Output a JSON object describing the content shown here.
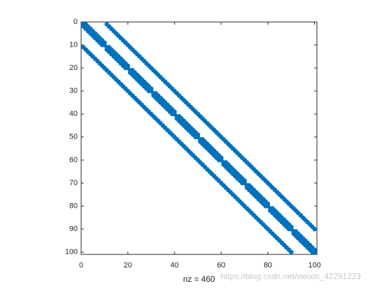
{
  "chart_data": {
    "type": "spy",
    "xlabel": "nz = 460",
    "watermark": "https://blog.csdn.net/weixin_42291223",
    "color": "#0072bd",
    "xlim": [
      0,
      101
    ],
    "ylim": [
      0,
      101
    ],
    "y_reversed": true,
    "xticks": [
      0,
      20,
      40,
      60,
      80,
      100
    ],
    "yticks": [
      0,
      10,
      20,
      30,
      40,
      50,
      60,
      70,
      80,
      90,
      100
    ],
    "x": [
      1,
      2,
      3,
      4,
      5,
      6,
      7,
      8,
      9,
      10,
      11,
      12,
      13,
      14,
      15,
      16,
      17,
      18,
      19,
      20,
      21,
      22,
      23,
      24,
      25,
      26,
      27,
      28,
      29,
      30,
      31,
      32,
      33,
      34,
      35,
      36,
      37,
      38,
      39,
      40,
      41,
      42,
      43,
      44,
      45,
      46,
      47,
      48,
      49,
      50,
      51,
      52,
      53,
      54,
      55,
      56,
      57,
      58,
      59,
      60,
      61,
      62,
      63,
      64,
      65,
      66,
      67,
      68,
      69,
      70,
      71,
      72,
      73,
      74,
      75,
      76,
      77,
      78,
      79,
      80,
      81,
      82,
      83,
      84,
      85,
      86,
      87,
      88,
      89,
      90,
      91,
      92,
      93,
      94,
      95,
      96,
      97,
      98,
      99,
      100,
      2,
      3,
      4,
      5,
      6,
      7,
      8,
      9,
      10,
      12,
      13,
      14,
      15,
      16,
      17,
      18,
      19,
      20,
      22,
      23,
      24,
      25,
      26,
      27,
      28,
      29,
      30,
      32,
      33,
      34,
      35,
      36,
      37,
      38,
      39,
      40,
      42,
      43,
      44,
      45,
      46,
      47,
      48,
      49,
      50,
      52,
      53,
      54,
      55,
      56,
      57,
      58,
      59,
      60,
      62,
      63,
      64,
      65,
      66,
      67,
      68,
      69,
      70,
      72,
      73,
      74,
      75,
      76,
      77,
      78,
      79,
      80,
      82,
      83,
      84,
      85,
      86,
      87,
      88,
      89,
      90,
      92,
      93,
      94,
      95,
      96,
      97,
      98,
      99,
      100,
      1,
      2,
      3,
      4,
      5,
      6,
      7,
      8,
      9,
      11,
      12,
      13,
      14,
      15,
      16,
      17,
      18,
      19,
      21,
      22,
      23,
      24,
      25,
      26,
      27,
      28,
      29,
      31,
      32,
      33,
      34,
      35,
      36,
      37,
      38,
      39,
      41,
      42,
      43,
      44,
      45,
      46,
      47,
      48,
      49,
      51,
      52,
      53,
      54,
      55,
      56,
      57,
      58,
      59,
      61,
      62,
      63,
      64,
      65,
      66,
      67,
      68,
      69,
      71,
      72,
      73,
      74,
      75,
      76,
      77,
      78,
      79,
      81,
      82,
      83,
      84,
      85,
      86,
      87,
      88,
      89,
      91,
      92,
      93,
      94,
      95,
      96,
      97,
      98,
      99,
      11,
      12,
      13,
      14,
      15,
      16,
      17,
      18,
      19,
      20,
      21,
      22,
      23,
      24,
      25,
      26,
      27,
      28,
      29,
      30,
      31,
      32,
      33,
      34,
      35,
      36,
      37,
      38,
      39,
      40,
      41,
      42,
      43,
      44,
      45,
      46,
      47,
      48,
      49,
      50,
      51,
      52,
      53,
      54,
      55,
      56,
      57,
      58,
      59,
      60,
      61,
      62,
      63,
      64,
      65,
      66,
      67,
      68,
      69,
      70,
      71,
      72,
      73,
      74,
      75,
      76,
      77,
      78,
      79,
      80,
      81,
      82,
      83,
      84,
      85,
      86,
      87,
      88,
      89,
      90,
      91,
      92,
      93,
      94,
      95,
      96,
      97,
      98,
      99,
      100,
      1,
      2,
      3,
      4,
      5,
      6,
      7,
      8,
      9,
      10,
      11,
      12,
      13,
      14,
      15,
      16,
      17,
      18,
      19,
      20,
      21,
      22,
      23,
      24,
      25,
      26,
      27,
      28,
      29,
      30,
      31,
      32,
      33,
      34,
      35,
      36,
      37,
      38,
      39,
      40,
      41,
      42,
      43,
      44,
      45,
      46,
      47,
      48,
      49,
      50,
      51,
      52,
      53,
      54,
      55,
      56,
      57,
      58,
      59,
      60,
      61,
      62,
      63,
      64,
      65,
      66,
      67,
      68,
      69,
      70,
      71,
      72,
      73,
      74,
      75,
      76,
      77,
      78,
      79,
      80,
      81,
      82,
      83,
      84,
      85,
      86,
      87,
      88,
      89,
      90
    ],
    "y": [
      1,
      2,
      3,
      4,
      5,
      6,
      7,
      8,
      9,
      10,
      11,
      12,
      13,
      14,
      15,
      16,
      17,
      18,
      19,
      20,
      21,
      22,
      23,
      24,
      25,
      26,
      27,
      28,
      29,
      30,
      31,
      32,
      33,
      34,
      35,
      36,
      37,
      38,
      39,
      40,
      41,
      42,
      43,
      44,
      45,
      46,
      47,
      48,
      49,
      50,
      51,
      52,
      53,
      54,
      55,
      56,
      57,
      58,
      59,
      60,
      61,
      62,
      63,
      64,
      65,
      66,
      67,
      68,
      69,
      70,
      71,
      72,
      73,
      74,
      75,
      76,
      77,
      78,
      79,
      80,
      81,
      82,
      83,
      84,
      85,
      86,
      87,
      88,
      89,
      90,
      91,
      92,
      93,
      94,
      95,
      96,
      97,
      98,
      99,
      100,
      1,
      2,
      3,
      4,
      5,
      6,
      7,
      8,
      9,
      11,
      12,
      13,
      14,
      15,
      16,
      17,
      18,
      19,
      21,
      22,
      23,
      24,
      25,
      26,
      27,
      28,
      29,
      31,
      32,
      33,
      34,
      35,
      36,
      37,
      38,
      39,
      41,
      42,
      43,
      44,
      45,
      46,
      47,
      48,
      49,
      51,
      52,
      53,
      54,
      55,
      56,
      57,
      58,
      59,
      61,
      62,
      63,
      64,
      65,
      66,
      67,
      68,
      69,
      71,
      72,
      73,
      74,
      75,
      76,
      77,
      78,
      79,
      81,
      82,
      83,
      84,
      85,
      86,
      87,
      88,
      89,
      91,
      92,
      93,
      94,
      95,
      96,
      97,
      98,
      99,
      2,
      3,
      4,
      5,
      6,
      7,
      8,
      9,
      10,
      12,
      13,
      14,
      15,
      16,
      17,
      18,
      19,
      20,
      22,
      23,
      24,
      25,
      26,
      27,
      28,
      29,
      30,
      32,
      33,
      34,
      35,
      36,
      37,
      38,
      39,
      40,
      42,
      43,
      44,
      45,
      46,
      47,
      48,
      49,
      50,
      52,
      53,
      54,
      55,
      56,
      57,
      58,
      59,
      60,
      62,
      63,
      64,
      65,
      66,
      67,
      68,
      69,
      70,
      72,
      73,
      74,
      75,
      76,
      77,
      78,
      79,
      80,
      82,
      83,
      84,
      85,
      86,
      87,
      88,
      89,
      90,
      92,
      93,
      94,
      95,
      96,
      97,
      98,
      99,
      100,
      1,
      2,
      3,
      4,
      5,
      6,
      7,
      8,
      9,
      10,
      11,
      12,
      13,
      14,
      15,
      16,
      17,
      18,
      19,
      20,
      21,
      22,
      23,
      24,
      25,
      26,
      27,
      28,
      29,
      30,
      31,
      32,
      33,
      34,
      35,
      36,
      37,
      38,
      39,
      40,
      41,
      42,
      43,
      44,
      45,
      46,
      47,
      48,
      49,
      50,
      51,
      52,
      53,
      54,
      55,
      56,
      57,
      58,
      59,
      60,
      61,
      62,
      63,
      64,
      65,
      66,
      67,
      68,
      69,
      70,
      71,
      72,
      73,
      74,
      75,
      76,
      77,
      78,
      79,
      80,
      81,
      82,
      83,
      84,
      85,
      86,
      87,
      88,
      89,
      90,
      11,
      12,
      13,
      14,
      15,
      16,
      17,
      18,
      19,
      20,
      21,
      22,
      23,
      24,
      25,
      26,
      27,
      28,
      29,
      30,
      31,
      32,
      33,
      34,
      35,
      36,
      37,
      38,
      39,
      40,
      41,
      42,
      43,
      44,
      45,
      46,
      47,
      48,
      49,
      50,
      51,
      52,
      53,
      54,
      55,
      56,
      57,
      58,
      59,
      60,
      61,
      62,
      63,
      64,
      65,
      66,
      67,
      68,
      69,
      70,
      71,
      72,
      73,
      74,
      75,
      76,
      77,
      78,
      79,
      80,
      81,
      82,
      83,
      84,
      85,
      86,
      87,
      88,
      89,
      90,
      91,
      92,
      93,
      94,
      95,
      96,
      97,
      98,
      99,
      100
    ]
  }
}
